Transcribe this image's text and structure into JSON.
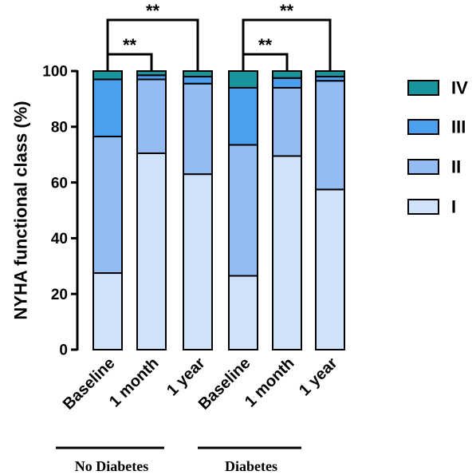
{
  "chart_data": {
    "type": "bar",
    "stacked": true,
    "ylabel": "NYHA functional class (%)",
    "ylim": [
      0,
      100
    ],
    "yticks": [
      "0",
      "20",
      "40",
      "60",
      "80",
      "100"
    ],
    "categories": [
      "Baseline",
      "1 month",
      "1 year",
      "Baseline",
      "1 month",
      "1 year"
    ],
    "groups": [
      {
        "label": "No Diabetes",
        "categories": [
          0,
          1,
          2
        ]
      },
      {
        "label": "Diabetes",
        "categories": [
          3,
          4,
          5
        ]
      }
    ],
    "series": [
      {
        "name": "I",
        "color": "#cfe2fa",
        "values": [
          27.5,
          70.5,
          63.0,
          26.5,
          69.5,
          57.5
        ]
      },
      {
        "name": "II",
        "color": "#93bdf2",
        "values": [
          49.0,
          26.5,
          32.5,
          47.0,
          24.5,
          39.0
        ]
      },
      {
        "name": "III",
        "color": "#4aa0ee",
        "values": [
          20.5,
          1.5,
          2.5,
          20.5,
          3.5,
          1.5
        ]
      },
      {
        "name": "IV",
        "color": "#19939c",
        "values": [
          3.0,
          1.5,
          2.0,
          6.0,
          2.5,
          2.0
        ]
      }
    ],
    "legend_order": [
      "IV",
      "III",
      "II",
      "I"
    ],
    "legend_position": "right",
    "significance": [
      {
        "from": 0,
        "to": 1,
        "label": "**"
      },
      {
        "from": 0,
        "to": 2,
        "label": "**"
      },
      {
        "from": 3,
        "to": 4,
        "label": "**"
      },
      {
        "from": 3,
        "to": 5,
        "label": "**"
      }
    ]
  }
}
